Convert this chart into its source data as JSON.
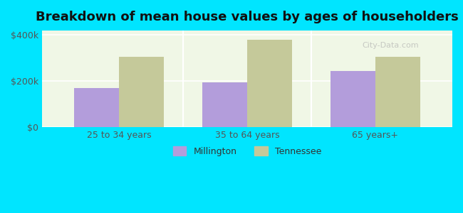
{
  "title": "Breakdown of mean house values by ages of householders",
  "categories": [
    "25 to 34 years",
    "35 to 64 years",
    "65 years+"
  ],
  "millington_values": [
    170000,
    195000,
    245000
  ],
  "tennessee_values": [
    305000,
    380000,
    305000
  ],
  "millington_color": "#b39ddb",
  "tennessee_color": "#c5c99a",
  "background_color": "#00e5ff",
  "plot_bg_start": "#f0f7e6",
  "plot_bg_end": "#ffffff",
  "ylim": [
    0,
    420000
  ],
  "yticks": [
    0,
    200000,
    400000
  ],
  "ytick_labels": [
    "$0",
    "$200k",
    "$400k"
  ],
  "legend_millington": "Millington",
  "legend_tennessee": "Tennessee",
  "bar_width": 0.35,
  "title_fontsize": 13,
  "tick_fontsize": 9,
  "legend_fontsize": 9
}
